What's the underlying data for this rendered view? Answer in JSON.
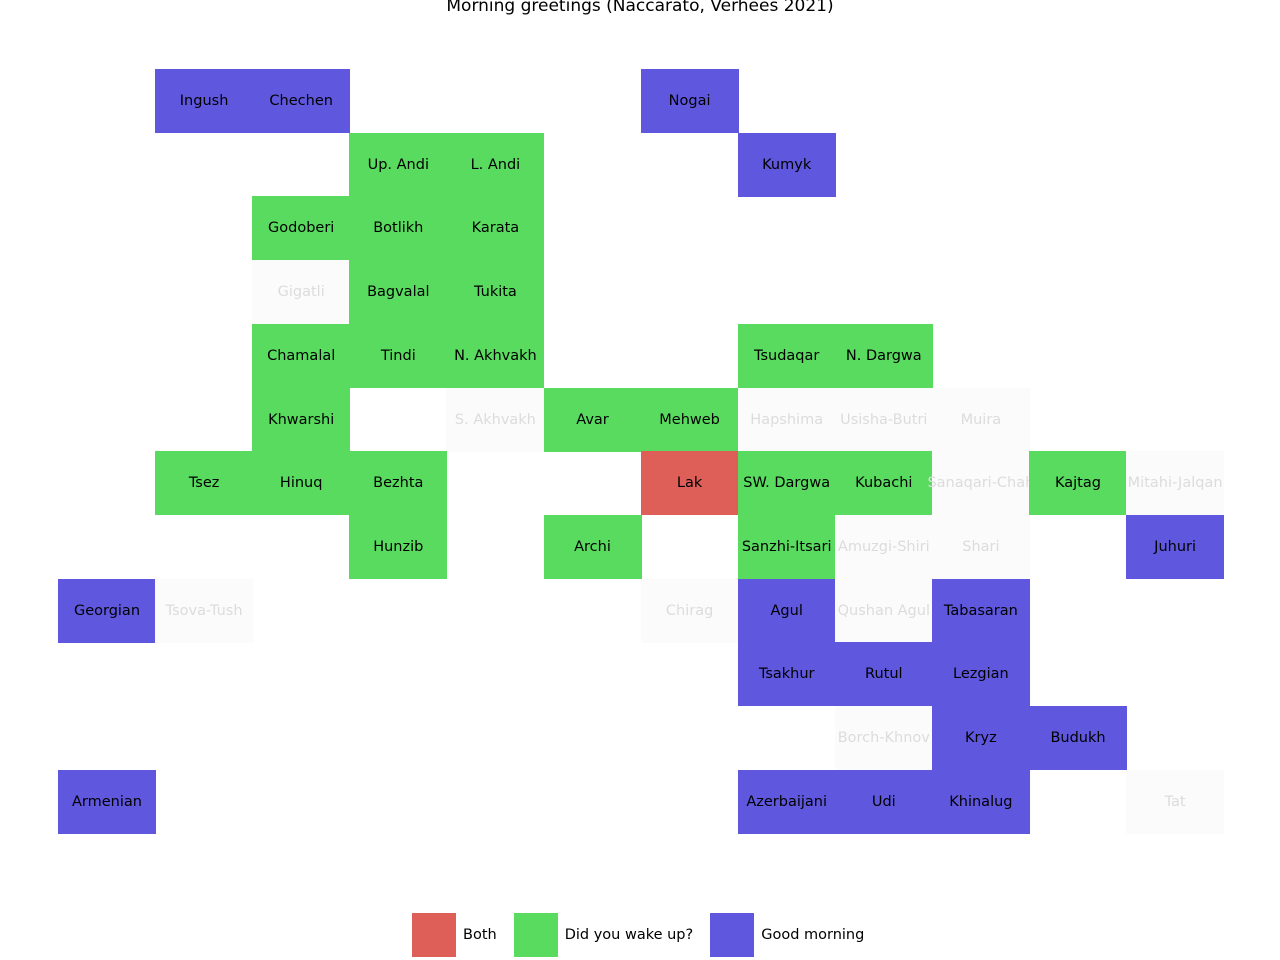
{
  "chart_data": {
    "type": "heatmap",
    "title": "Morning greetings (Naccarato, Verhees 2021)",
    "colors": {
      "both": "#de5f57",
      "wake": "#58db5e",
      "morning": "#5f57de",
      "missing": "#fbfbfb"
    },
    "legend": {
      "placement": "bottom-center",
      "items": [
        {
          "key": "both",
          "label": "Both"
        },
        {
          "key": "wake",
          "label": "Did you wake up?"
        },
        {
          "key": "morning",
          "label": "Good morning"
        }
      ]
    },
    "cells": [
      {
        "row": 0,
        "col": 1,
        "label": "Ingush",
        "category": "morning"
      },
      {
        "row": 0,
        "col": 2,
        "label": "Chechen",
        "category": "morning"
      },
      {
        "row": 0,
        "col": 6,
        "label": "Nogai",
        "category": "morning"
      },
      {
        "row": 1,
        "col": 3,
        "label": "Up. Andi",
        "category": "wake"
      },
      {
        "row": 1,
        "col": 4,
        "label": "L. Andi",
        "category": "wake"
      },
      {
        "row": 1,
        "col": 7,
        "label": "Kumyk",
        "category": "morning"
      },
      {
        "row": 2,
        "col": 2,
        "label": "Godoberi",
        "category": "wake"
      },
      {
        "row": 2,
        "col": 3,
        "label": "Botlikh",
        "category": "wake"
      },
      {
        "row": 2,
        "col": 4,
        "label": "Karata",
        "category": "wake"
      },
      {
        "row": 3,
        "col": 2,
        "label": "Gigatli",
        "category": "missing"
      },
      {
        "row": 3,
        "col": 3,
        "label": "Bagvalal",
        "category": "wake"
      },
      {
        "row": 3,
        "col": 4,
        "label": "Tukita",
        "category": "wake"
      },
      {
        "row": 4,
        "col": 2,
        "label": "Chamalal",
        "category": "wake"
      },
      {
        "row": 4,
        "col": 3,
        "label": "Tindi",
        "category": "wake"
      },
      {
        "row": 4,
        "col": 4,
        "label": "N. Akhvakh",
        "category": "wake"
      },
      {
        "row": 4,
        "col": 7,
        "label": "Tsudaqar",
        "category": "wake"
      },
      {
        "row": 4,
        "col": 8,
        "label": "N. Dargwa",
        "category": "wake"
      },
      {
        "row": 5,
        "col": 2,
        "label": "Khwarshi",
        "category": "wake"
      },
      {
        "row": 5,
        "col": 4,
        "label": "S. Akhvakh",
        "category": "missing"
      },
      {
        "row": 5,
        "col": 5,
        "label": "Avar",
        "category": "wake"
      },
      {
        "row": 5,
        "col": 6,
        "label": "Mehweb",
        "category": "wake"
      },
      {
        "row": 5,
        "col": 7,
        "label": "Hapshima",
        "category": "missing"
      },
      {
        "row": 5,
        "col": 8,
        "label": "Usisha-Butri",
        "category": "missing"
      },
      {
        "row": 5,
        "col": 9,
        "label": "Muira",
        "category": "missing"
      },
      {
        "row": 6,
        "col": 1,
        "label": "Tsez",
        "category": "wake"
      },
      {
        "row": 6,
        "col": 2,
        "label": "Hinuq",
        "category": "wake"
      },
      {
        "row": 6,
        "col": 3,
        "label": "Bezhta",
        "category": "wake"
      },
      {
        "row": 6,
        "col": 6,
        "label": "Lak",
        "category": "both"
      },
      {
        "row": 6,
        "col": 7,
        "label": "SW. Dargwa",
        "category": "wake"
      },
      {
        "row": 6,
        "col": 8,
        "label": "Kubachi",
        "category": "wake"
      },
      {
        "row": 6,
        "col": 9,
        "label": "Sanaqari-Chah",
        "category": "missing"
      },
      {
        "row": 6,
        "col": 10,
        "label": "Kajtag",
        "category": "wake"
      },
      {
        "row": 6,
        "col": 11,
        "label": "Mitahi-Jalqan",
        "category": "missing"
      },
      {
        "row": 7,
        "col": 3,
        "label": "Hunzib",
        "category": "wake"
      },
      {
        "row": 7,
        "col": 5,
        "label": "Archi",
        "category": "wake"
      },
      {
        "row": 7,
        "col": 7,
        "label": "Sanzhi-Itsari",
        "category": "wake"
      },
      {
        "row": 7,
        "col": 8,
        "label": "Amuzgi-Shiri",
        "category": "missing"
      },
      {
        "row": 7,
        "col": 9,
        "label": "Shari",
        "category": "missing"
      },
      {
        "row": 7,
        "col": 11,
        "label": "Juhuri",
        "category": "morning"
      },
      {
        "row": 8,
        "col": 0,
        "label": "Georgian",
        "category": "morning"
      },
      {
        "row": 8,
        "col": 1,
        "label": "Tsova-Tush",
        "category": "missing"
      },
      {
        "row": 8,
        "col": 6,
        "label": "Chirag",
        "category": "missing"
      },
      {
        "row": 8,
        "col": 7,
        "label": "Agul",
        "category": "morning"
      },
      {
        "row": 8,
        "col": 8,
        "label": "Qushan Agul",
        "category": "missing"
      },
      {
        "row": 8,
        "col": 9,
        "label": "Tabasaran",
        "category": "morning"
      },
      {
        "row": 9,
        "col": 7,
        "label": "Tsakhur",
        "category": "morning"
      },
      {
        "row": 9,
        "col": 8,
        "label": "Rutul",
        "category": "morning"
      },
      {
        "row": 9,
        "col": 9,
        "label": "Lezgian",
        "category": "morning"
      },
      {
        "row": 10,
        "col": 8,
        "label": "Borch-Khnov",
        "category": "missing"
      },
      {
        "row": 10,
        "col": 9,
        "label": "Kryz",
        "category": "morning"
      },
      {
        "row": 10,
        "col": 10,
        "label": "Budukh",
        "category": "morning"
      },
      {
        "row": 11,
        "col": 0,
        "label": "Armenian",
        "category": "morning"
      },
      {
        "row": 11,
        "col": 7,
        "label": "Azerbaijani",
        "category": "morning"
      },
      {
        "row": 11,
        "col": 8,
        "label": "Udi",
        "category": "morning"
      },
      {
        "row": 11,
        "col": 9,
        "label": "Khinalug",
        "category": "morning"
      },
      {
        "row": 11,
        "col": 11,
        "label": "Tat",
        "category": "missing"
      }
    ]
  }
}
